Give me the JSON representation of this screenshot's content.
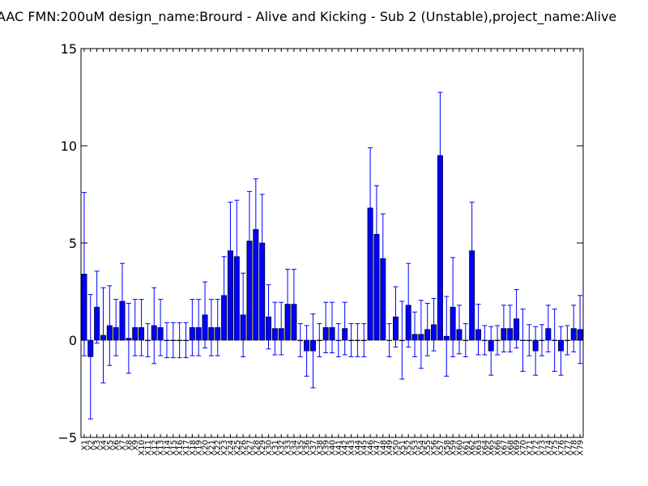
{
  "chart_data": {
    "type": "bar",
    "title": "AAC  FMN:200uM  design_name:Brourd - Alive and Kicking - Sub 2 (Unstable),project_name:Alive",
    "xlabel": "",
    "ylabel": "",
    "ylim": [
      -5,
      15
    ],
    "yticks": [
      "−5",
      "0",
      "5",
      "10",
      "15"
    ],
    "ytick_values": [
      -5,
      0,
      5,
      10,
      15
    ],
    "grid": false,
    "colors": {
      "bar": "#0000ff",
      "bar_edge": "#000000",
      "errorbar": "#0000ff"
    },
    "categories": [
      "X1",
      "X2",
      "X3",
      "X4",
      "X5",
      "X6",
      "X7",
      "X8",
      "X9",
      "X10",
      "X11",
      "X12",
      "X13",
      "X14",
      "X15",
      "X16",
      "X17",
      "X18",
      "X19",
      "X20",
      "X21",
      "X22",
      "X23",
      "X24",
      "X25",
      "X26",
      "X27",
      "X28",
      "X29",
      "X30",
      "X31",
      "X32",
      "X33",
      "X34",
      "X35",
      "X36",
      "X37",
      "X38",
      "X39",
      "X40",
      "X41",
      "X42",
      "X43",
      "X44",
      "X45",
      "X46",
      "X47",
      "X48",
      "X49",
      "X50",
      "X51",
      "X52",
      "X53",
      "X54",
      "X55",
      "X56",
      "X57",
      "X58",
      "X59",
      "X60",
      "X61",
      "X62",
      "X63",
      "X64",
      "X65",
      "X66",
      "X67",
      "X68",
      "X69",
      "X70",
      "X71",
      "X72",
      "X73",
      "X74",
      "X75",
      "X76",
      "X77",
      "X78",
      "X79"
    ],
    "values": [
      3.4,
      -0.85,
      1.7,
      0.25,
      0.75,
      0.65,
      2.0,
      0.1,
      0.65,
      0.65,
      0.0,
      0.75,
      0.65,
      0.0,
      0.0,
      0.0,
      0.0,
      0.65,
      0.65,
      1.3,
      0.65,
      0.65,
      2.3,
      4.6,
      4.3,
      1.3,
      5.1,
      5.7,
      5.0,
      1.2,
      0.6,
      0.6,
      1.85,
      1.85,
      0.0,
      -0.55,
      -0.55,
      0.0,
      0.65,
      0.65,
      0.0,
      0.6,
      0.0,
      0.0,
      0.0,
      6.8,
      5.45,
      4.2,
      0.0,
      1.2,
      0.0,
      1.8,
      0.3,
      0.3,
      0.55,
      0.8,
      9.5,
      0.2,
      1.7,
      0.55,
      0.0,
      4.6,
      0.55,
      0.0,
      -0.55,
      0.0,
      0.6,
      0.6,
      1.1,
      0.0,
      0.0,
      -0.55,
      0.0,
      0.6,
      0.0,
      -0.55,
      0.0,
      0.6,
      0.55
    ],
    "errors": [
      4.2,
      3.2,
      1.85,
      2.45,
      2.05,
      1.45,
      1.95,
      1.8,
      1.45,
      1.45,
      0.85,
      1.95,
      1.45,
      0.9,
      0.9,
      0.9,
      0.9,
      1.45,
      1.45,
      1.7,
      1.45,
      1.45,
      2.0,
      2.5,
      2.9,
      2.15,
      2.55,
      2.6,
      2.5,
      1.65,
      1.35,
      1.35,
      1.8,
      1.8,
      0.85,
      1.3,
      1.9,
      0.85,
      1.3,
      1.3,
      0.85,
      1.35,
      0.85,
      0.85,
      0.85,
      3.1,
      2.5,
      2.3,
      0.85,
      1.55,
      2.0,
      2.15,
      1.15,
      1.75,
      1.35,
      1.35,
      3.25,
      2.05,
      2.55,
      1.25,
      0.85,
      2.5,
      1.3,
      0.75,
      1.25,
      0.75,
      1.2,
      1.2,
      1.5,
      1.6,
      0.8,
      1.25,
      0.8,
      1.2,
      1.6,
      1.25,
      0.75,
      1.2,
      1.75
    ]
  }
}
